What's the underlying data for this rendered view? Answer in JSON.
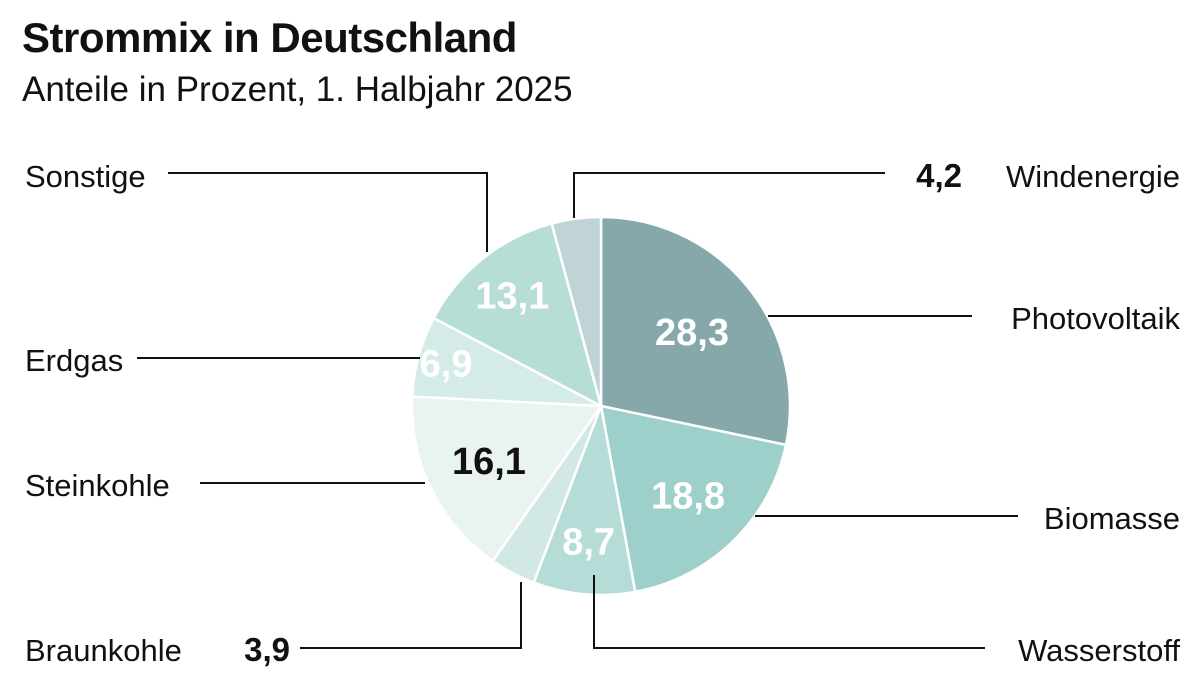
{
  "chart_data": {
    "type": "pie",
    "title": "Strommix in Deutschland",
    "subtitle": "Anteile in Prozent, 1. Halbjahr 2025",
    "slices": [
      {
        "label": "Photovoltaik",
        "value": 28.3,
        "value_text": "28,3",
        "color": "#86a8ab",
        "value_color": "#ffffff"
      },
      {
        "label": "Biomasse",
        "value": 18.8,
        "value_text": "18,8",
        "color": "#9dd0ca",
        "value_color": "#ffffff"
      },
      {
        "label": "Wasserstoff",
        "value": 8.7,
        "value_text": "8,7",
        "color": "#b5dcd7",
        "value_color": "#ffffff"
      },
      {
        "label": "Braunkohle",
        "value": 3.9,
        "value_text": "3,9",
        "color": "#d1e8e4",
        "value_color": "#111111"
      },
      {
        "label": "Steinkohle",
        "value": 16.1,
        "value_text": "16,1",
        "color": "#e9f4f2",
        "value_color": "#111111"
      },
      {
        "label": "Erdgas",
        "value": 6.9,
        "value_text": "6,9",
        "color": "#d5ebe7",
        "value_color": "#ffffff"
      },
      {
        "label": "Sonstige",
        "value": 13.1,
        "value_text": "13,1",
        "color": "#b7ddd7",
        "value_color": "#ffffff"
      },
      {
        "label": "Windenergie",
        "value": 4.2,
        "value_text": "4,2",
        "color": "#c0d3d6",
        "value_color": "#111111"
      }
    ]
  }
}
